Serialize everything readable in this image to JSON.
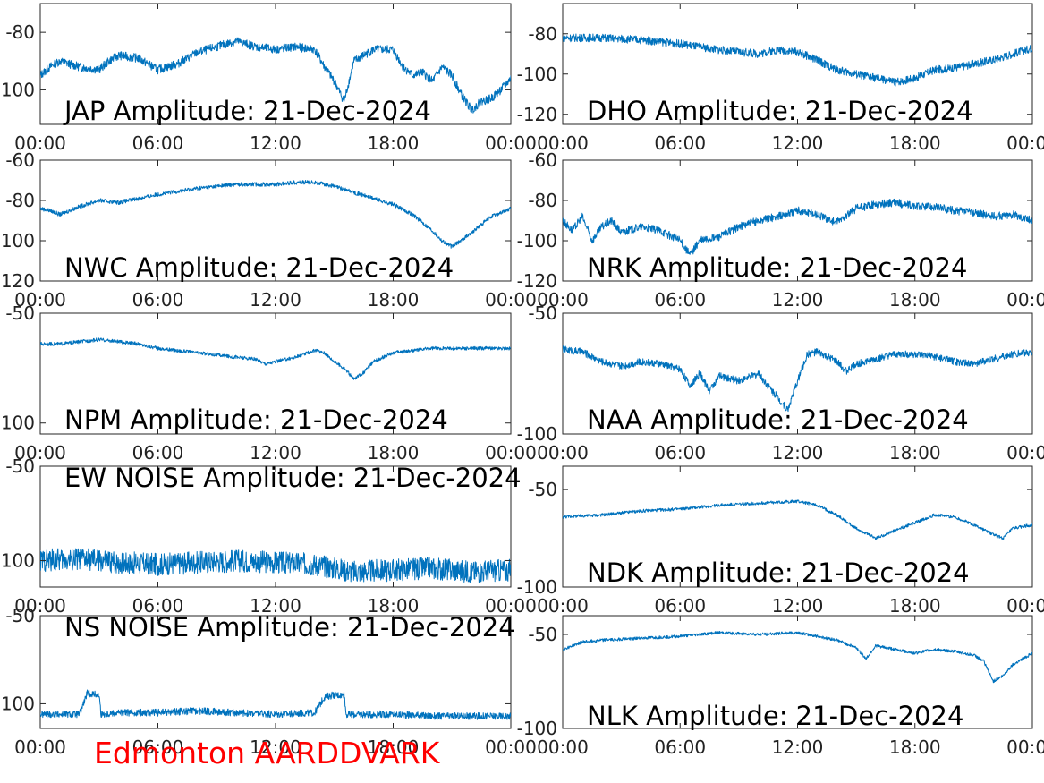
{
  "footer_label": "Edmonton AARDDVARK",
  "colors": {
    "line": "#0072bd",
    "footer": "#ff0000",
    "axis": "#262626"
  },
  "chart_data": [
    {
      "type": "line",
      "title": "JAP Amplitude: 21-Dec-2024",
      "xticks": [
        "00:00",
        "06:00",
        "12:00",
        "18:00",
        "00:00"
      ],
      "ylim": [
        -112,
        -70
      ],
      "yticks": [
        -80,
        -100
      ],
      "ytick_labels": [
        "-80",
        "-100"
      ],
      "noise": 1.5,
      "series": [
        {
          "x": [
            0,
            0.5,
            1,
            2,
            3,
            3.5,
            4,
            5,
            6,
            7,
            8,
            9,
            10,
            11,
            12,
            13,
            14,
            14.5,
            15,
            15.5,
            16,
            17,
            18,
            18.5,
            19,
            19.5,
            20,
            20.5,
            21,
            21.5,
            22,
            22.5,
            23,
            23.5,
            24
          ],
          "y": [
            -95,
            -92,
            -90,
            -92,
            -93,
            -90,
            -88,
            -89,
            -93,
            -91,
            -87,
            -85,
            -83,
            -85,
            -86,
            -85,
            -86,
            -92,
            -97,
            -104,
            -90,
            -86,
            -86,
            -92,
            -95,
            -94,
            -97,
            -92,
            -95,
            -102,
            -107,
            -104,
            -103,
            -100,
            -96
          ]
        }
      ]
    },
    {
      "type": "line",
      "title": "DHO Amplitude: 21-Dec-2024",
      "xticks": [
        "00:00",
        "06:00",
        "12:00",
        "18:00",
        "00:00"
      ],
      "ylim": [
        -125,
        -65
      ],
      "yticks": [
        -80,
        -100,
        -120
      ],
      "ytick_labels": [
        "-80",
        "-100",
        "-120"
      ],
      "noise": 2,
      "series": [
        {
          "x": [
            0,
            2,
            4,
            6,
            8,
            10,
            11,
            12,
            13,
            14,
            15,
            16,
            17,
            18,
            19,
            20,
            21,
            22,
            23,
            24
          ],
          "y": [
            -82,
            -82,
            -83,
            -85,
            -88,
            -90,
            -88,
            -89,
            -93,
            -98,
            -100,
            -102,
            -104,
            -102,
            -98,
            -97,
            -95,
            -93,
            -90,
            -87
          ]
        }
      ]
    },
    {
      "type": "line",
      "title": "NWC Amplitude: 21-Dec-2024",
      "xticks": [
        "00:00",
        "06:00",
        "12:00",
        "18:00",
        "00:00"
      ],
      "ylim": [
        -120,
        -60
      ],
      "yticks": [
        -60,
        -80,
        -100,
        -120
      ],
      "ytick_labels": [
        "-60",
        "-80",
        "-100",
        "-120"
      ],
      "noise": 1,
      "series": [
        {
          "x": [
            0,
            0.5,
            1,
            2,
            3,
            4,
            6,
            8,
            10,
            12,
            13,
            14,
            15,
            16,
            17,
            18,
            19,
            20,
            20.5,
            21,
            22,
            23,
            24
          ],
          "y": [
            -84,
            -85,
            -87,
            -83,
            -80,
            -81,
            -77,
            -74,
            -72,
            -72,
            -71,
            -71,
            -73,
            -76,
            -79,
            -82,
            -87,
            -95,
            -100,
            -103,
            -96,
            -88,
            -84
          ]
        }
      ]
    },
    {
      "type": "line",
      "title": "NRK Amplitude: 21-Dec-2024",
      "xticks": [
        "00:00",
        "06:00",
        "12:00",
        "18:00",
        "00:00"
      ],
      "ylim": [
        -120,
        -60
      ],
      "yticks": [
        -60,
        -80,
        -100,
        -120
      ],
      "ytick_labels": [
        "-60",
        "-80",
        "-100",
        "-120"
      ],
      "noise": 2,
      "series": [
        {
          "x": [
            0,
            0.5,
            1,
            1.5,
            2,
            2.5,
            3,
            4,
            5,
            6,
            6.5,
            7,
            8,
            9,
            10,
            11,
            12,
            13,
            14,
            15,
            16,
            17,
            18,
            19,
            20,
            21,
            22,
            23,
            24
          ],
          "y": [
            -90,
            -95,
            -88,
            -100,
            -93,
            -90,
            -96,
            -93,
            -95,
            -100,
            -107,
            -100,
            -98,
            -93,
            -90,
            -88,
            -85,
            -87,
            -91,
            -84,
            -82,
            -81,
            -83,
            -83,
            -85,
            -86,
            -88,
            -87,
            -90
          ]
        }
      ]
    },
    {
      "type": "line",
      "title": "NPM Amplitude: 21-Dec-2024",
      "xticks": [
        "00:00",
        "06:00",
        "12:00",
        "18:00",
        "00:00"
      ],
      "ylim": [
        -105,
        -50
      ],
      "yticks": [
        -50,
        -100
      ],
      "ytick_labels": [
        "-50",
        "-100"
      ],
      "noise": 0.8,
      "series": [
        {
          "x": [
            0,
            1,
            2,
            3,
            4,
            5,
            6,
            7,
            8,
            9,
            10,
            11,
            11.5,
            12,
            13,
            14,
            14.5,
            15,
            15.5,
            16,
            16.5,
            17,
            17.5,
            18,
            19,
            20,
            21,
            22,
            23,
            24
          ],
          "y": [
            -64,
            -64,
            -63,
            -62,
            -63,
            -64,
            -66,
            -67,
            -68,
            -69,
            -70,
            -71,
            -73,
            -72,
            -70,
            -67,
            -68,
            -72,
            -75,
            -80,
            -77,
            -72,
            -70,
            -68,
            -67,
            -66,
            -66,
            -66,
            -66,
            -66
          ]
        }
      ]
    },
    {
      "type": "line",
      "title": "NAA Amplitude: 21-Dec-2024",
      "xticks": [
        "00:00",
        "06:00",
        "12:00",
        "18:00",
        "00:00"
      ],
      "ylim": [
        -100,
        -50
      ],
      "yticks": [
        -50,
        -100
      ],
      "ytick_labels": [
        "-50",
        "-100"
      ],
      "noise": 1.5,
      "series": [
        {
          "x": [
            0,
            1,
            1.5,
            2,
            3,
            4,
            5,
            6,
            6.5,
            7,
            7.5,
            8,
            9,
            10,
            10.5,
            11,
            11.5,
            12,
            12.5,
            13,
            14,
            14.5,
            15,
            16,
            17,
            18,
            19,
            20,
            21,
            22,
            23,
            24
          ],
          "y": [
            -65,
            -66,
            -68,
            -70,
            -72,
            -70,
            -71,
            -73,
            -80,
            -75,
            -82,
            -76,
            -78,
            -75,
            -80,
            -85,
            -90,
            -78,
            -67,
            -66,
            -70,
            -74,
            -71,
            -69,
            -67,
            -67,
            -68,
            -70,
            -71,
            -69,
            -67,
            -66
          ]
        }
      ]
    },
    {
      "type": "line",
      "title": "EW NOISE Amplitude: 21-Dec-2024",
      "xticks": [
        "00:00",
        "06:00",
        "12:00",
        "18:00",
        "00:00"
      ],
      "ylim": [
        -114,
        -50
      ],
      "yticks": [
        -50,
        -100
      ],
      "ytick_labels": [
        "-50",
        "-100"
      ],
      "noise": 6,
      "series": [
        {
          "x": [
            0,
            2,
            4,
            6,
            8,
            10,
            12,
            14,
            15,
            16,
            18,
            20,
            22,
            24
          ],
          "y": [
            -100,
            -99,
            -101,
            -102,
            -101,
            -100,
            -101,
            -102,
            -104,
            -106,
            -105,
            -104,
            -106,
            -105
          ]
        }
      ]
    },
    {
      "type": "line",
      "title": "NDK Amplitude: 21-Dec-2024",
      "xticks": [
        "00:00",
        "06:00",
        "12:00",
        "18:00",
        "00:00"
      ],
      "ylim": [
        -100,
        -38
      ],
      "yticks": [
        -50,
        -100
      ],
      "ytick_labels": [
        "-50",
        "-100"
      ],
      "noise": 0.8,
      "series": [
        {
          "x": [
            0,
            2,
            4,
            6,
            8,
            10,
            12,
            13,
            14,
            15,
            16,
            16.5,
            17,
            18,
            19,
            20,
            21,
            22,
            22.5,
            23,
            24
          ],
          "y": [
            -64,
            -63,
            -61,
            -60,
            -58,
            -57,
            -56,
            -58,
            -63,
            -70,
            -75,
            -73,
            -71,
            -67,
            -63,
            -64,
            -68,
            -73,
            -75,
            -70,
            -68
          ]
        }
      ]
    },
    {
      "type": "line",
      "title": "NS NOISE Amplitude: 21-Dec-2024",
      "xticks": [
        "00:00",
        "06:00",
        "12:00",
        "18:00",
        "00:00"
      ],
      "ylim": [
        -114,
        -50
      ],
      "yticks": [
        -50,
        -100
      ],
      "ytick_labels": [
        "-50",
        "-100"
      ],
      "noise": 2,
      "series": [
        {
          "x": [
            0,
            2,
            2.2,
            2.4,
            3,
            3.1,
            4,
            6,
            8,
            10,
            12,
            14,
            14.5,
            15,
            15.5,
            15.6,
            18,
            20,
            22,
            24
          ],
          "y": [
            -106,
            -106,
            -100,
            -94,
            -95,
            -106,
            -105,
            -105,
            -104,
            -105,
            -106,
            -105,
            -96,
            -95,
            -95,
            -106,
            -106,
            -107,
            -107,
            -107
          ]
        }
      ]
    },
    {
      "type": "line",
      "title": "NLK Amplitude: 21-Dec-2024",
      "xticks": [
        "00:00",
        "06:00",
        "12:00",
        "18:00",
        "00:00"
      ],
      "ylim": [
        -100,
        -40
      ],
      "yticks": [
        -50,
        -100
      ],
      "ytick_labels": [
        "-50",
        "-100"
      ],
      "noise": 0.8,
      "series": [
        {
          "x": [
            0,
            1,
            2,
            4,
            6,
            8,
            10,
            12,
            13,
            14,
            15,
            15.5,
            16,
            17,
            18,
            19,
            20,
            21,
            21.5,
            22,
            22.5,
            23,
            24
          ],
          "y": [
            -58,
            -54,
            -53,
            -52,
            -51,
            -49,
            -50,
            -49,
            -51,
            -53,
            -57,
            -63,
            -56,
            -58,
            -60,
            -58,
            -59,
            -61,
            -64,
            -75,
            -72,
            -66,
            -60
          ]
        }
      ]
    }
  ]
}
